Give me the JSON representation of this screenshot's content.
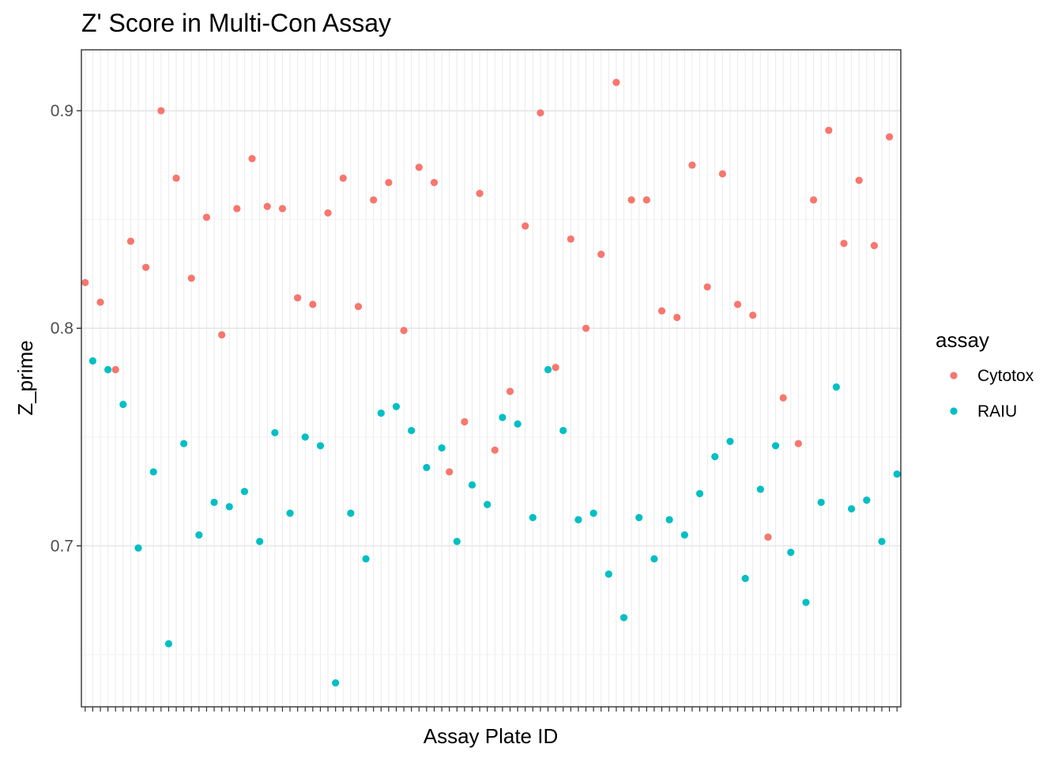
{
  "chart_data": {
    "type": "scatter",
    "title": "Z' Score in Multi-Con Assay",
    "xlabel": "Assay Plate ID",
    "ylabel": "Z_prime",
    "ylim": [
      0.626,
      0.928
    ],
    "yticks": [
      0.7,
      0.8,
      0.9
    ],
    "ytick_labels": [
      "0.7",
      "0.8",
      "0.9"
    ],
    "x_categories": 108,
    "grid": true,
    "legend": {
      "title": "assay",
      "placement": "right"
    },
    "series": [
      {
        "name": "Cytotox",
        "color": "#F8766D",
        "points": [
          [
            1,
            0.821
          ],
          [
            3,
            0.812
          ],
          [
            5,
            0.781
          ],
          [
            7,
            0.84
          ],
          [
            9,
            0.828
          ],
          [
            11,
            0.9
          ],
          [
            13,
            0.869
          ],
          [
            15,
            0.823
          ],
          [
            17,
            0.851
          ],
          [
            19,
            0.797
          ],
          [
            21,
            0.855
          ],
          [
            23,
            0.878
          ],
          [
            25,
            0.856
          ],
          [
            27,
            0.855
          ],
          [
            29,
            0.814
          ],
          [
            31,
            0.811
          ],
          [
            33,
            0.853
          ],
          [
            35,
            0.869
          ],
          [
            37,
            0.81
          ],
          [
            39,
            0.859
          ],
          [
            41,
            0.867
          ],
          [
            43,
            0.799
          ],
          [
            45,
            0.874
          ],
          [
            47,
            0.867
          ],
          [
            49,
            0.734
          ],
          [
            51,
            0.757
          ],
          [
            53,
            0.862
          ],
          [
            55,
            0.744
          ],
          [
            57,
            0.771
          ],
          [
            59,
            0.847
          ],
          [
            61,
            0.899
          ],
          [
            63,
            0.782
          ],
          [
            65,
            0.841
          ],
          [
            67,
            0.8
          ],
          [
            69,
            0.834
          ],
          [
            71,
            0.913
          ],
          [
            73,
            0.859
          ],
          [
            75,
            0.859
          ],
          [
            77,
            0.808
          ],
          [
            79,
            0.805
          ],
          [
            81,
            0.875
          ],
          [
            83,
            0.819
          ],
          [
            85,
            0.871
          ],
          [
            87,
            0.811
          ],
          [
            89,
            0.806
          ],
          [
            91,
            0.704
          ],
          [
            93,
            0.768
          ],
          [
            95,
            0.747
          ],
          [
            97,
            0.859
          ],
          [
            99,
            0.891
          ],
          [
            101,
            0.839
          ],
          [
            103,
            0.868
          ],
          [
            105,
            0.838
          ],
          [
            107,
            0.888
          ]
        ]
      },
      {
        "name": "RAIU",
        "color": "#00BFC4",
        "points": [
          [
            2,
            0.785
          ],
          [
            4,
            0.781
          ],
          [
            6,
            0.765
          ],
          [
            8,
            0.699
          ],
          [
            10,
            0.734
          ],
          [
            12,
            0.655
          ],
          [
            14,
            0.747
          ],
          [
            16,
            0.705
          ],
          [
            18,
            0.72
          ],
          [
            20,
            0.718
          ],
          [
            22,
            0.725
          ],
          [
            24,
            0.702
          ],
          [
            26,
            0.752
          ],
          [
            28,
            0.715
          ],
          [
            30,
            0.75
          ],
          [
            32,
            0.746
          ],
          [
            34,
            0.637
          ],
          [
            36,
            0.715
          ],
          [
            38,
            0.694
          ],
          [
            40,
            0.761
          ],
          [
            42,
            0.764
          ],
          [
            44,
            0.753
          ],
          [
            46,
            0.736
          ],
          [
            48,
            0.745
          ],
          [
            50,
            0.702
          ],
          [
            52,
            0.728
          ],
          [
            54,
            0.719
          ],
          [
            56,
            0.759
          ],
          [
            58,
            0.756
          ],
          [
            60,
            0.713
          ],
          [
            62,
            0.781
          ],
          [
            64,
            0.753
          ],
          [
            66,
            0.712
          ],
          [
            68,
            0.715
          ],
          [
            70,
            0.687
          ],
          [
            72,
            0.667
          ],
          [
            74,
            0.713
          ],
          [
            76,
            0.694
          ],
          [
            78,
            0.712
          ],
          [
            80,
            0.705
          ],
          [
            82,
            0.724
          ],
          [
            84,
            0.741
          ],
          [
            86,
            0.748
          ],
          [
            88,
            0.685
          ],
          [
            90,
            0.726
          ],
          [
            92,
            0.746
          ],
          [
            94,
            0.697
          ],
          [
            96,
            0.674
          ],
          [
            98,
            0.72
          ],
          [
            100,
            0.773
          ],
          [
            102,
            0.717
          ],
          [
            104,
            0.721
          ],
          [
            106,
            0.702
          ],
          [
            108,
            0.733
          ]
        ]
      }
    ]
  }
}
